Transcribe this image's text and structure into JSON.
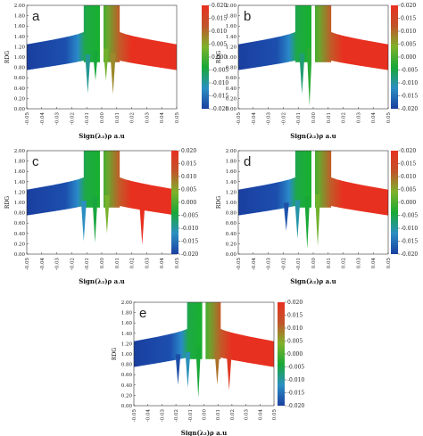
{
  "chart_data": [
    {
      "type": "scatter",
      "panel_label": "a",
      "xlabel": "Sign(λ₂)ρ a.u",
      "ylabel": "RDG",
      "xlim": [
        -0.05,
        0.05
      ],
      "ylim": [
        0.0,
        2.0
      ],
      "x_ticks": [
        "-0.05",
        "-0.04",
        "-0.03",
        "-0.02",
        "-0.01",
        "0.00",
        "0.01",
        "0.02",
        "0.03",
        "0.04",
        "0.05"
      ],
      "y_ticks": [
        "0.00",
        "0.20",
        "0.40",
        "0.60",
        "0.80",
        "1.00",
        "1.20",
        "1.40",
        "1.60",
        "1.80",
        "2.00"
      ],
      "colorbar": {
        "range": [
          -0.02,
          0.02
        ],
        "ticks": [
          "0.020",
          "0.015",
          "0.010",
          "0.005",
          "0.000",
          "-0.005",
          "-0.010",
          "-0.015",
          "-0.020"
        ],
        "colors": [
          "#1a3fa0",
          "#2b8fc2",
          "#18a836",
          "#7eb22b",
          "#c0542a",
          "#e83020"
        ]
      },
      "spikes": [
        -0.0093,
        -0.0042,
        0.0028,
        0.0075
      ],
      "spike_depth": [
        0.3,
        0.55,
        0.55,
        0.28
      ]
    },
    {
      "type": "scatter",
      "panel_label": "b",
      "xlabel": "Sign(λ₂)ρ a.u",
      "ylabel": "RDG",
      "xlim": [
        -0.05,
        0.05
      ],
      "ylim": [
        0.0,
        2.0
      ],
      "x_ticks": [
        "-0.05",
        "-0.04",
        "-0.03",
        "-0.02",
        "-0.01",
        "0.00",
        "0.01",
        "0.02",
        "0.03",
        "0.04",
        "0.05"
      ],
      "y_ticks": [
        "0.00",
        "0.20",
        "0.40",
        "0.60",
        "0.80",
        "1.00",
        "1.20",
        "1.40",
        "1.60",
        "1.80",
        "2.00"
      ],
      "colorbar": {
        "range": [
          -0.02,
          0.02
        ],
        "ticks": [
          "0.020",
          "0.015",
          "0.010",
          "0.005",
          "0.000",
          "-0.005",
          "-0.010",
          "-0.015",
          "-0.020"
        ],
        "colors": [
          "#1a3fa0",
          "#2b8fc2",
          "#18a836",
          "#7eb22b",
          "#c0542a",
          "#e83020"
        ]
      },
      "spikes": [
        -0.0075,
        -0.0025
      ],
      "spike_depth": [
        0.28,
        0.05
      ]
    },
    {
      "type": "scatter",
      "panel_label": "c",
      "xlabel": "Sign(λ₂)ρ a.u",
      "ylabel": "RDG",
      "xlim": [
        -0.05,
        0.05
      ],
      "ylim": [
        0.0,
        2.0
      ],
      "x_ticks": [
        "-0.05",
        "-0.04",
        "-0.03",
        "-0.02",
        "-0.01",
        "0.00",
        "0.01",
        "0.02",
        "0.03",
        "0.04",
        "0.05"
      ],
      "y_ticks": [
        "0.00",
        "0.20",
        "0.40",
        "0.60",
        "0.80",
        "1.00",
        "1.20",
        "1.40",
        "1.60",
        "1.80",
        "2.00"
      ],
      "colorbar": {
        "range": [
          -0.02,
          0.02
        ],
        "ticks": [
          "0.020",
          "0.015",
          "0.010",
          "0.005",
          "0.000",
          "-0.005",
          "-0.010",
          "-0.015",
          "-0.020"
        ],
        "colors": [
          "#1a3fa0",
          "#2b8fc2",
          "#18a836",
          "#7eb22b",
          "#c0542a",
          "#e83020"
        ]
      },
      "spikes": [
        -0.012,
        -0.0045,
        0.0035,
        0.027
      ],
      "spike_depth": [
        0.25,
        0.22,
        0.4,
        0.18
      ]
    },
    {
      "type": "scatter",
      "panel_label": "d",
      "xlabel": "Sign(λ₂)ρ a.u",
      "ylabel": "RDG",
      "xlim": [
        -0.05,
        0.05
      ],
      "ylim": [
        0.0,
        2.0
      ],
      "x_ticks": [
        "-0.05",
        "-0.04",
        "-0.03",
        "-0.02",
        "-0.01",
        "0.00",
        "0.01",
        "0.02",
        "0.03",
        "0.04",
        "0.05"
      ],
      "y_ticks": [
        "0.00",
        "0.20",
        "0.40",
        "0.60",
        "0.80",
        "1.00",
        "1.20",
        "1.40",
        "1.60",
        "1.80",
        "2.00"
      ],
      "colorbar": {
        "range": [
          -0.02,
          0.02
        ],
        "ticks": [
          "0.020",
          "0.015",
          "0.010",
          "0.005",
          "0.000",
          "-0.005",
          "-0.010",
          "-0.015",
          "-0.020"
        ],
        "colors": [
          "#1a3fa0",
          "#2b8fc2",
          "#18a836",
          "#7eb22b",
          "#c0542a",
          "#e83020"
        ]
      },
      "spikes": [
        -0.018,
        -0.0105,
        -0.004,
        0.003
      ],
      "spike_depth": [
        0.45,
        0.3,
        0.1,
        0.15
      ]
    },
    {
      "type": "scatter",
      "panel_label": "e",
      "xlabel": "Sign(λ₂)ρ a.u",
      "ylabel": "RDG",
      "xlim": [
        -0.05,
        0.05
      ],
      "ylim": [
        0.0,
        2.0
      ],
      "x_ticks": [
        "-0.05",
        "-0.04",
        "-0.03",
        "-0.02",
        "-0.01",
        "0.00",
        "0.01",
        "0.02",
        "0.03",
        "0.04",
        "0.05"
      ],
      "y_ticks": [
        "0.00",
        "0.20",
        "0.40",
        "0.60",
        "0.80",
        "1.00",
        "1.20",
        "1.40",
        "1.60",
        "1.80",
        "2.00"
      ],
      "colorbar": {
        "range": [
          -0.02,
          0.02
        ],
        "ticks": [
          "0.020",
          "0.015",
          "0.010",
          "0.005",
          "0.000",
          "-0.005",
          "-0.010",
          "-0.015",
          "-0.020"
        ],
        "colors": [
          "#1a3fa0",
          "#2b8fc2",
          "#18a836",
          "#7eb22b",
          "#c0542a",
          "#e83020"
        ]
      },
      "spikes": [
        -0.0185,
        -0.0115,
        -0.004,
        0.0095,
        0.018
      ],
      "spike_depth": [
        0.4,
        0.35,
        0.15,
        0.4,
        0.3
      ]
    }
  ]
}
